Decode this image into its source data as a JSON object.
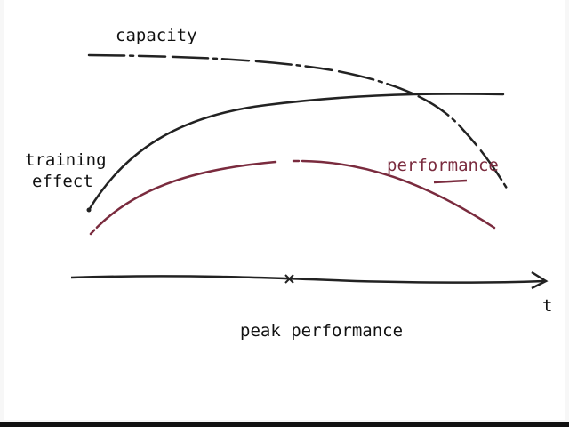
{
  "curves": [
    {
      "label": "capacity"
    },
    {
      "label": "training effect"
    },
    {
      "label": "performance"
    }
  ],
  "axis": {
    "label": "t",
    "marker_label": "peak performance"
  }
}
